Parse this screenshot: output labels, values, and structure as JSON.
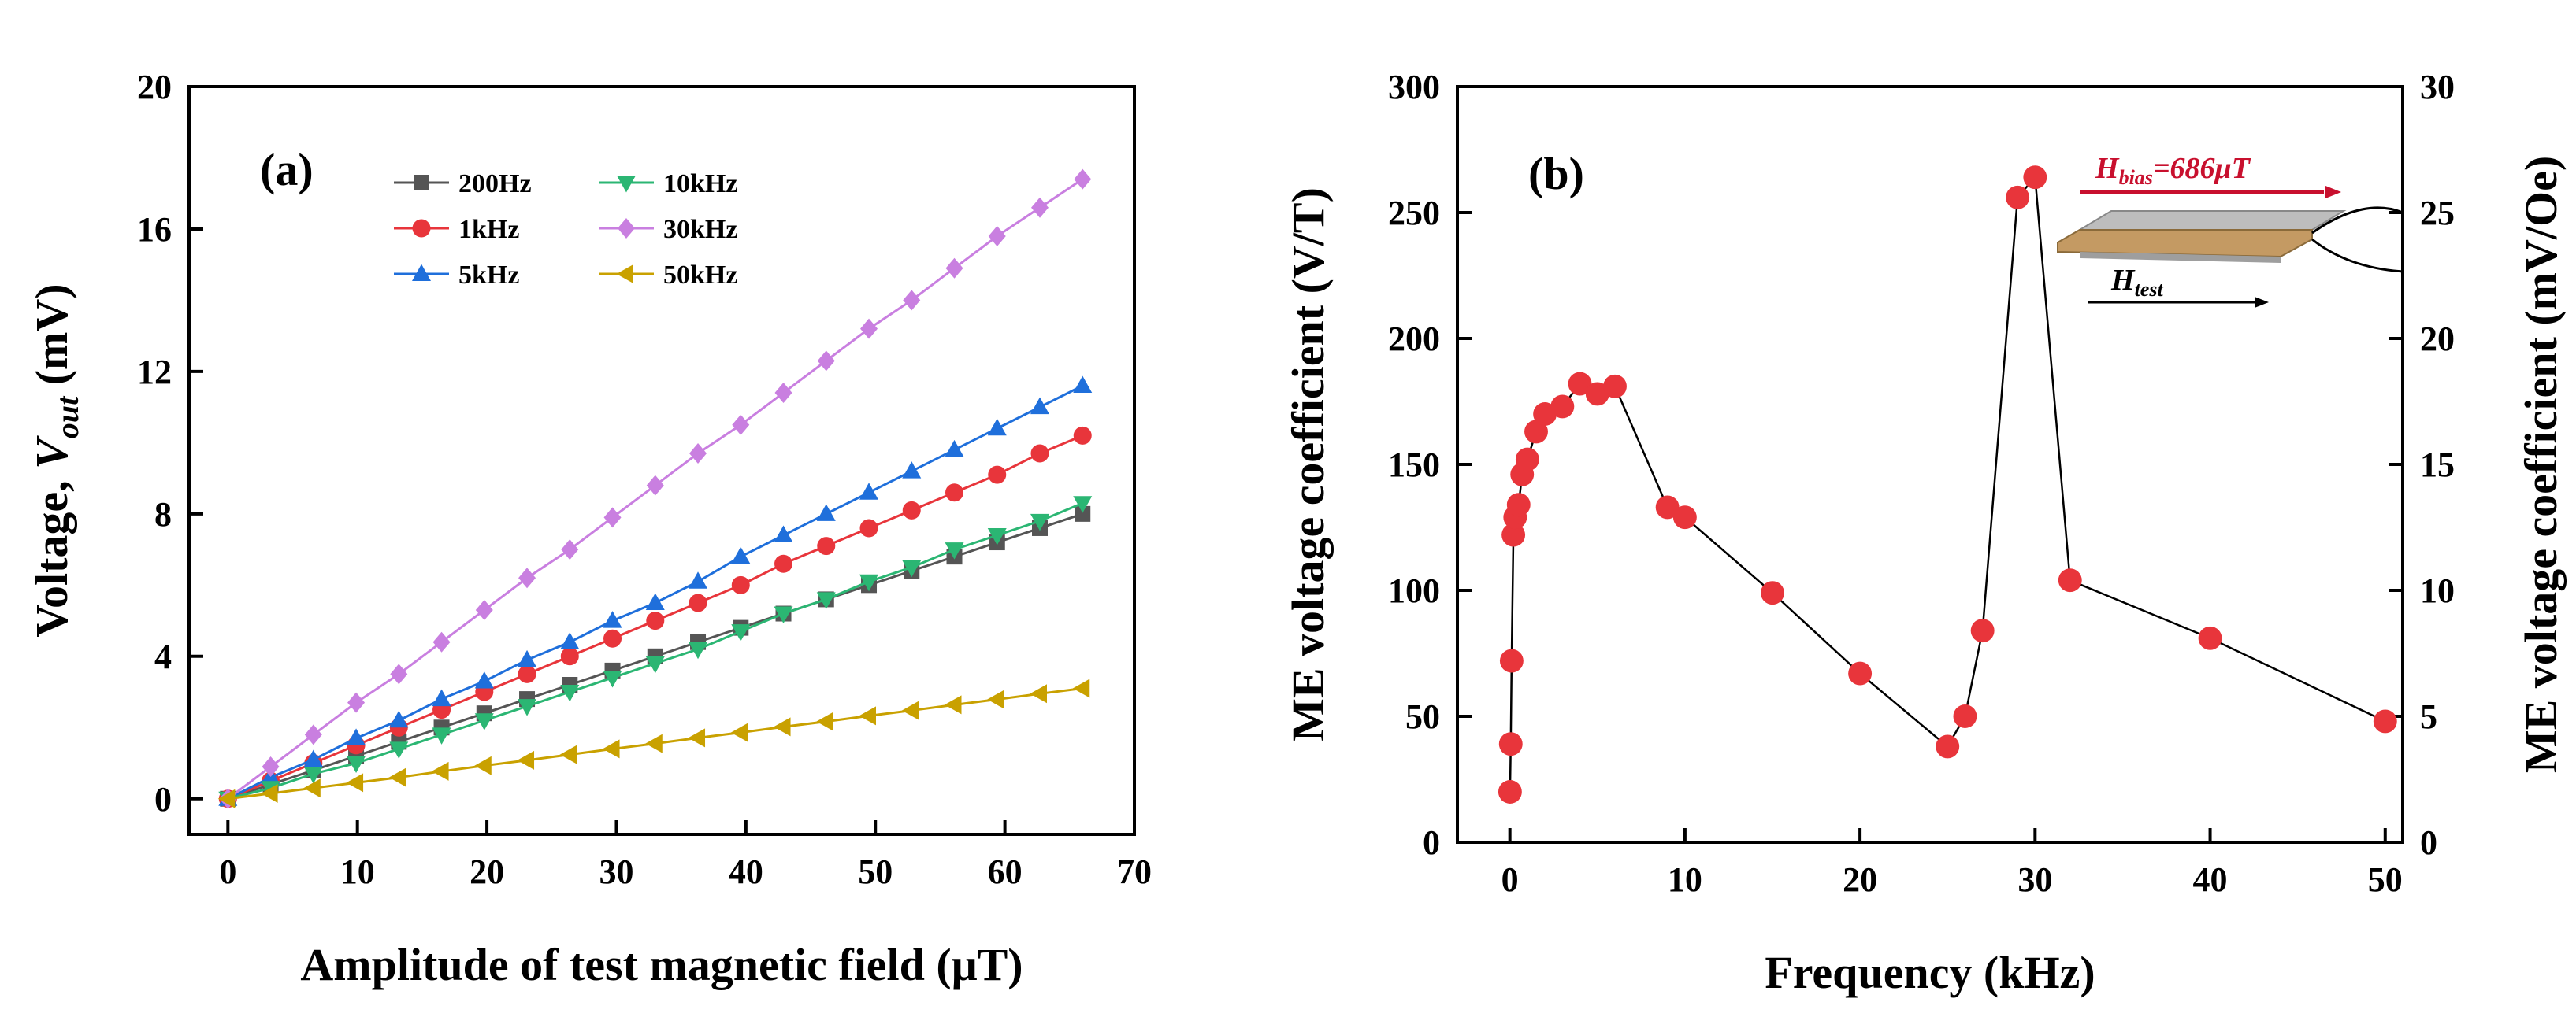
{
  "chart_data": [
    {
      "type": "line",
      "panel_label": "(a)",
      "title": "",
      "xlabel": "Amplitude of test magnetic field (μT)",
      "ylabel_prefix": "Voltage, ",
      "ylabel_var": "V",
      "ylabel_sub": "out",
      "ylabel_unit": " (mV)",
      "xlim": [
        -3,
        70
      ],
      "ylim": [
        -1,
        20
      ],
      "xticks": [
        0,
        10,
        20,
        30,
        40,
        50,
        60,
        70
      ],
      "yticks": [
        0,
        4,
        8,
        12,
        16,
        20
      ],
      "x": [
        0,
        3.3,
        6.6,
        9.9,
        13.2,
        16.5,
        19.8,
        23.1,
        26.4,
        29.7,
        33,
        36.3,
        39.6,
        42.9,
        46.2,
        49.5,
        52.8,
        56.1,
        59.4,
        62.7,
        66
      ],
      "legend_position": "top-left",
      "series": [
        {
          "name": "200Hz",
          "color": "#555555",
          "marker": "square",
          "values": [
            0,
            0.4,
            0.8,
            1.2,
            1.6,
            2.0,
            2.4,
            2.8,
            3.2,
            3.6,
            4.0,
            4.4,
            4.8,
            5.2,
            5.6,
            6.0,
            6.4,
            6.8,
            7.2,
            7.6,
            8.0
          ]
        },
        {
          "name": "1kHz",
          "color": "#e8353b",
          "marker": "circle",
          "values": [
            0,
            0.5,
            1.0,
            1.5,
            2.0,
            2.5,
            3.0,
            3.5,
            4.0,
            4.5,
            5.0,
            5.5,
            6.0,
            6.6,
            7.1,
            7.6,
            8.1,
            8.6,
            9.1,
            9.7,
            10.2
          ]
        },
        {
          "name": "5kHz",
          "color": "#1f6fdb",
          "marker": "triangle-up",
          "values": [
            0,
            0.6,
            1.1,
            1.7,
            2.2,
            2.8,
            3.3,
            3.9,
            4.4,
            5.0,
            5.5,
            6.1,
            6.8,
            7.4,
            8.0,
            8.6,
            9.2,
            9.8,
            10.4,
            11.0,
            11.6
          ]
        },
        {
          "name": "10kHz",
          "color": "#2bb673",
          "marker": "triangle-down",
          "values": [
            0,
            0.3,
            0.7,
            1.0,
            1.4,
            1.8,
            2.2,
            2.6,
            3.0,
            3.4,
            3.8,
            4.2,
            4.7,
            5.2,
            5.6,
            6.1,
            6.5,
            7.0,
            7.4,
            7.8,
            8.3
          ]
        },
        {
          "name": "30kHz",
          "color": "#c97fe0",
          "marker": "diamond",
          "values": [
            0,
            0.9,
            1.8,
            2.7,
            3.5,
            4.4,
            5.3,
            6.2,
            7.0,
            7.9,
            8.8,
            9.7,
            10.5,
            11.4,
            12.3,
            13.2,
            14.0,
            14.9,
            15.8,
            16.6,
            17.4
          ]
        },
        {
          "name": "50kHz",
          "color": "#c9a100",
          "marker": "triangle-left",
          "values": [
            0,
            0.15,
            0.3,
            0.45,
            0.6,
            0.77,
            0.93,
            1.08,
            1.24,
            1.4,
            1.55,
            1.71,
            1.86,
            2.02,
            2.17,
            2.33,
            2.48,
            2.64,
            2.79,
            2.95,
            3.1
          ]
        }
      ]
    },
    {
      "type": "line",
      "panel_label": "(b)",
      "title": "",
      "xlabel": "Frequency (kHz)",
      "ylabel": "ME voltage coefficient (V/T)",
      "ylabel_right": "ME voltage coefficient (mV/Oe)",
      "xlim": [
        -3,
        51
      ],
      "ylim": [
        0,
        300
      ],
      "ylim_right": [
        0,
        30
      ],
      "xticks": [
        0,
        10,
        20,
        30,
        40,
        50
      ],
      "yticks": [
        0,
        50,
        100,
        150,
        200,
        250,
        300
      ],
      "yticks_right": [
        0,
        5,
        10,
        15,
        20,
        25,
        30
      ],
      "series": [
        {
          "name": "ME coefficient",
          "color": "#e8353b",
          "marker": "circle",
          "x": [
            0.01,
            0.05,
            0.1,
            0.2,
            0.3,
            0.5,
            0.7,
            1.0,
            1.5,
            2.0,
            3.0,
            4.0,
            5.0,
            6.0,
            9.0,
            10.0,
            15.0,
            20.0,
            25.0,
            26.0,
            27.0,
            29.0,
            30.0,
            32.0,
            40.0,
            50.0
          ],
          "values": [
            20,
            39,
            72,
            122,
            129,
            134,
            146,
            152,
            163,
            170,
            173,
            182,
            178,
            181,
            133,
            129,
            99,
            67,
            38,
            50,
            84,
            256,
            264,
            104,
            81,
            48
          ]
        }
      ],
      "inset": {
        "hbias_var": "H",
        "hbias_sub": "bias",
        "hbias_value": "=686μT",
        "htest_var": "H",
        "htest_sub": "test",
        "hbias_color": "#c8102e"
      }
    }
  ]
}
